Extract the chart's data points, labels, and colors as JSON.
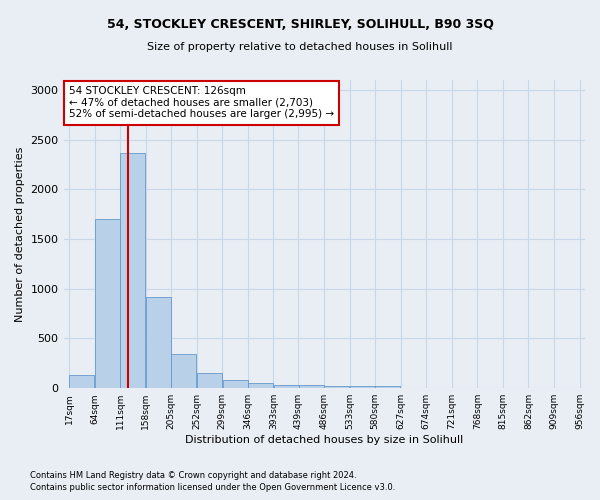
{
  "title1": "54, STOCKLEY CRESCENT, SHIRLEY, SOLIHULL, B90 3SQ",
  "title2": "Size of property relative to detached houses in Solihull",
  "xlabel": "Distribution of detached houses by size in Solihull",
  "ylabel": "Number of detached properties",
  "bar_values": [
    130,
    1700,
    2370,
    920,
    340,
    155,
    80,
    50,
    35,
    30,
    25,
    25,
    20,
    0,
    0,
    0,
    0,
    0,
    0,
    0
  ],
  "bin_edges": [
    17,
    64,
    111,
    158,
    205,
    252,
    299,
    346,
    393,
    439,
    486,
    533,
    580,
    627,
    674,
    721,
    768,
    815,
    862,
    909,
    956
  ],
  "bar_color": "#b8d0e8",
  "bar_edge_color": "#6699cc",
  "property_line_x": 126,
  "property_line_color": "#cc0000",
  "annotation_text": "54 STOCKLEY CRESCENT: 126sqm\n← 47% of detached houses are smaller (2,703)\n52% of semi-detached houses are larger (2,995) →",
  "annotation_box_color": "#ffffff",
  "annotation_box_edge_color": "#cc0000",
  "ylim": [
    0,
    3100
  ],
  "grid_color": "#c8d8e8",
  "footer_line1": "Contains HM Land Registry data © Crown copyright and database right 2024.",
  "footer_line2": "Contains public sector information licensed under the Open Government Licence v3.0.",
  "background_color": "#e8eef4"
}
